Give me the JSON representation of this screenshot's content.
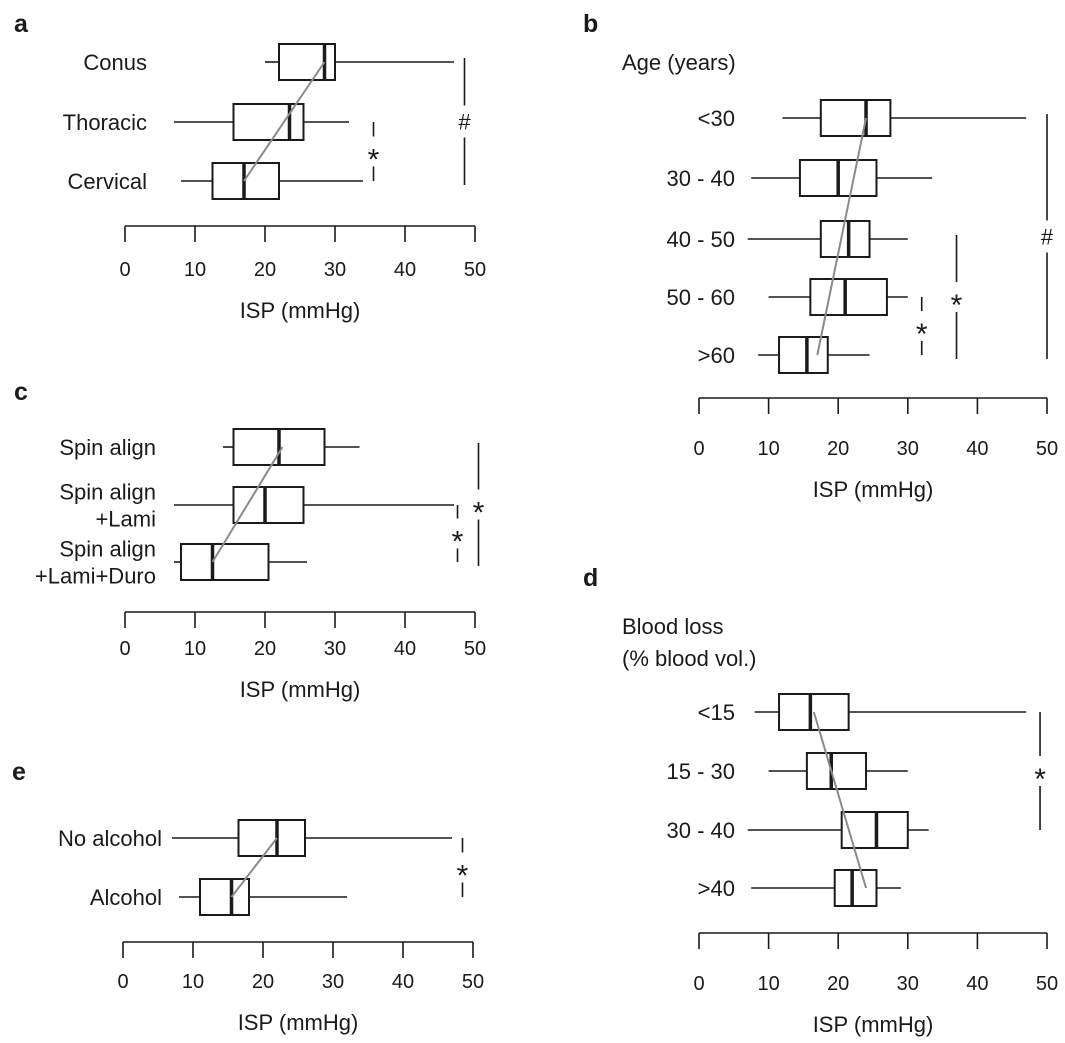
{
  "chart_data": [
    {
      "panel": "a",
      "type": "box",
      "group_title": "",
      "categories": [
        "Conus",
        "Thoracic",
        "Cervical"
      ],
      "boxes": [
        {
          "min": 20,
          "q1": 22,
          "median": 28.5,
          "q3": 30,
          "max": 47
        },
        {
          "min": 7,
          "q1": 15.5,
          "median": 23.5,
          "q3": 25.5,
          "max": 32
        },
        {
          "min": 8,
          "q1": 12.5,
          "median": 17,
          "q3": 22,
          "max": 34
        }
      ],
      "trend": [
        [
          28.5,
          0
        ],
        [
          17,
          2
        ]
      ],
      "xlabel": "ISP (mmHg)",
      "xlim": [
        0,
        50
      ],
      "xticks": [
        0,
        10,
        20,
        30,
        40,
        50
      ],
      "significance": [
        {
          "symbol": "*",
          "from": 1,
          "to": 2,
          "x": 35.5,
          "style": "dashed"
        },
        {
          "symbol": "#",
          "from": 0,
          "to": 2,
          "x": 48.5,
          "style": "solid"
        }
      ]
    },
    {
      "panel": "b",
      "type": "box",
      "group_title": "Age (years)",
      "categories": [
        "<30",
        "30 - 40",
        "40 - 50",
        "50 - 60",
        ">60"
      ],
      "boxes": [
        {
          "min": 12,
          "q1": 17.5,
          "median": 24,
          "q3": 27.5,
          "max": 47
        },
        {
          "min": 7.5,
          "q1": 14.5,
          "median": 20,
          "q3": 25.5,
          "max": 33.5
        },
        {
          "min": 7,
          "q1": 17.5,
          "median": 21.5,
          "q3": 24.5,
          "max": 30
        },
        {
          "min": 10,
          "q1": 16,
          "median": 21,
          "q3": 27,
          "max": 30
        },
        {
          "min": 8.5,
          "q1": 11.5,
          "median": 15.5,
          "q3": 18.5,
          "max": 24.5
        }
      ],
      "trend": [
        [
          24,
          0
        ],
        [
          17,
          4
        ]
      ],
      "xlabel": "ISP (mmHg)",
      "xlim": [
        0,
        50
      ],
      "xticks": [
        0,
        10,
        20,
        30,
        40,
        50
      ],
      "significance": [
        {
          "symbol": "*",
          "from": 3,
          "to": 4,
          "x": 32,
          "style": "dashed"
        },
        {
          "symbol": "*",
          "from": 2,
          "to": 4,
          "x": 37,
          "style": "solid"
        },
        {
          "symbol": "#",
          "from": 0,
          "to": 4,
          "x": 50,
          "style": "solid"
        }
      ]
    },
    {
      "panel": "c",
      "type": "box",
      "group_title": "",
      "categories": [
        [
          "Spin align"
        ],
        [
          "Spin align",
          "+Lami"
        ],
        [
          "Spin align",
          "+Lami+Duro"
        ]
      ],
      "boxes": [
        {
          "min": 14,
          "q1": 15.5,
          "median": 22,
          "q3": 28.5,
          "max": 33.5
        },
        {
          "min": 7,
          "q1": 15.5,
          "median": 20,
          "q3": 25.5,
          "max": 47
        },
        {
          "min": 7,
          "q1": 8,
          "median": 12.5,
          "q3": 20.5,
          "max": 26
        }
      ],
      "trend": [
        [
          22.5,
          0
        ],
        [
          12.5,
          2
        ]
      ],
      "xlabel": "ISP (mmHg)",
      "xlim": [
        0,
        50
      ],
      "xticks": [
        0,
        10,
        20,
        30,
        40,
        50
      ],
      "significance": [
        {
          "symbol": "*",
          "from": 1,
          "to": 2,
          "x": 47.5,
          "style": "dashed"
        },
        {
          "symbol": "*",
          "from": 0,
          "to": 2,
          "x": 50.5,
          "style": "solid"
        }
      ]
    },
    {
      "panel": "d",
      "type": "box",
      "group_title": [
        "Blood loss",
        "(% blood vol.)"
      ],
      "categories": [
        "<15",
        "15 - 30",
        "30 - 40",
        ">40"
      ],
      "boxes": [
        {
          "min": 8,
          "q1": 11.5,
          "median": 16,
          "q3": 21.5,
          "max": 47
        },
        {
          "min": 10,
          "q1": 15.5,
          "median": 19,
          "q3": 24,
          "max": 30
        },
        {
          "min": 7,
          "q1": 20.5,
          "median": 25.5,
          "q3": 30,
          "max": 33
        },
        {
          "min": 7.5,
          "q1": 19.5,
          "median": 22,
          "q3": 25.5,
          "max": 29
        }
      ],
      "trend": [
        [
          16.5,
          0
        ],
        [
          24,
          3
        ]
      ],
      "xlabel": "ISP (mmHg)",
      "xlim": [
        0,
        50
      ],
      "xticks": [
        0,
        10,
        20,
        30,
        40,
        50
      ],
      "significance": [
        {
          "symbol": "*",
          "from": 0,
          "to": 2,
          "x": 49,
          "style": "dashed"
        }
      ]
    },
    {
      "panel": "e",
      "type": "box",
      "group_title": "",
      "categories": [
        "No alcohol",
        "Alcohol"
      ],
      "boxes": [
        {
          "min": 7,
          "q1": 16.5,
          "median": 22,
          "q3": 26,
          "max": 47
        },
        {
          "min": 8,
          "q1": 11,
          "median": 15.5,
          "q3": 18,
          "max": 32
        }
      ],
      "trend": [
        [
          22,
          0
        ],
        [
          15.5,
          1
        ]
      ],
      "xlabel": "ISP (mmHg)",
      "xlim": [
        0,
        50
      ],
      "xticks": [
        0,
        10,
        20,
        30,
        40,
        50
      ],
      "significance": [
        {
          "symbol": "*",
          "from": 0,
          "to": 1,
          "x": 48.5,
          "style": "dashed"
        }
      ]
    }
  ]
}
